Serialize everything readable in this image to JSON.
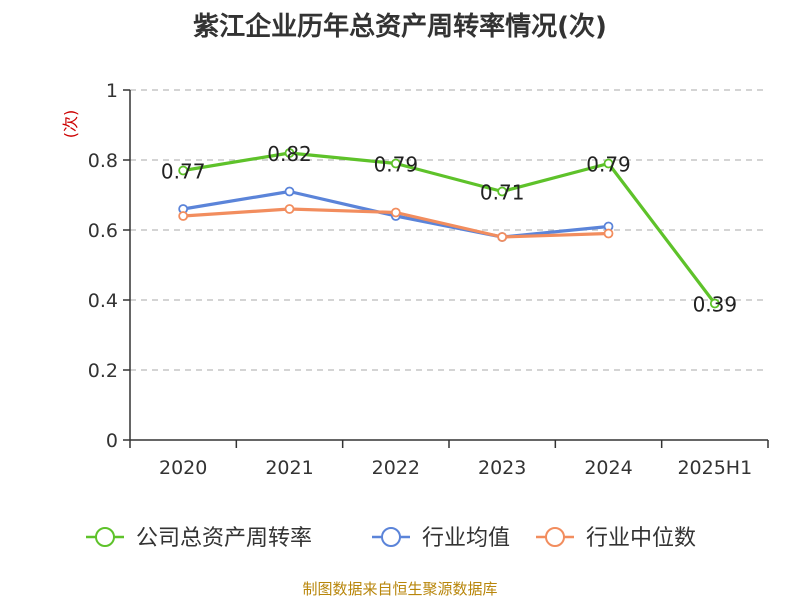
{
  "title": "紫江企业历年总资产周转率情况(次)",
  "footer": "制图数据来自恒生聚源数据库",
  "colors": {
    "company": "#5ec22a",
    "industry_avg": "#5b84d9",
    "industry_median": "#f28d5e",
    "unit": "#cc0000",
    "grid": "#bbbbbb",
    "axis": "#333333"
  },
  "chart_data": {
    "type": "line",
    "title": "紫江企业历年总资产周转率情况(次)",
    "ylabel": "(次)",
    "xlabel": "",
    "categories": [
      "2020",
      "2021",
      "2022",
      "2023",
      "2024",
      "2025H1"
    ],
    "yticks": [
      "0",
      "0.2",
      "0.4",
      "0.6",
      "0.8",
      "1"
    ],
    "ylim": [
      0,
      1
    ],
    "grid": true,
    "legend_position": "bottom",
    "series": [
      {
        "name": "公司总资产周转率",
        "color": "#5ec22a",
        "values": [
          0.77,
          0.82,
          0.79,
          0.71,
          0.79,
          0.39
        ],
        "labels": [
          "0.77",
          "0.82",
          "0.79",
          "0.71",
          "0.79",
          "0.39"
        ]
      },
      {
        "name": "行业均值",
        "color": "#5b84d9",
        "values": [
          0.66,
          0.71,
          0.64,
          0.58,
          0.61,
          null
        ]
      },
      {
        "name": "行业中位数",
        "color": "#f28d5e",
        "values": [
          0.64,
          0.66,
          0.65,
          0.58,
          0.59,
          null
        ]
      }
    ]
  }
}
